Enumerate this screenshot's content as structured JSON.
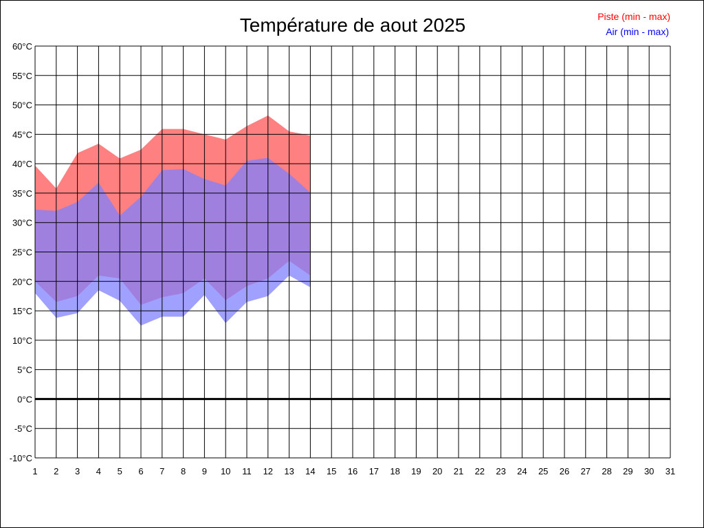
{
  "chart_data": {
    "type": "area",
    "title": "Température de aout 2025",
    "xlabel": "",
    "ylabel": "",
    "x": [
      1,
      2,
      3,
      4,
      5,
      6,
      7,
      8,
      9,
      10,
      11,
      12,
      13,
      14,
      15,
      16,
      17,
      18,
      19,
      20,
      21,
      22,
      23,
      24,
      25,
      26,
      27,
      28,
      29,
      30,
      31
    ],
    "x_tick_labels": [
      "1",
      "2",
      "3",
      "4",
      "5",
      "6",
      "7",
      "8",
      "9",
      "10",
      "11",
      "12",
      "13",
      "14",
      "15",
      "16",
      "17",
      "18",
      "19",
      "20",
      "21",
      "22",
      "23",
      "24",
      "25",
      "26",
      "27",
      "28",
      "29",
      "30",
      "31"
    ],
    "xlim": [
      1,
      31
    ],
    "ylim": [
      -10,
      60
    ],
    "y_ticks": [
      -10,
      -5,
      0,
      5,
      10,
      15,
      20,
      25,
      30,
      35,
      40,
      45,
      50,
      55,
      60
    ],
    "y_tick_labels": [
      "-10°C",
      "-5°C",
      "0°C",
      "5°C",
      "10°C",
      "15°C",
      "20°C",
      "25°C",
      "30°C",
      "35°C",
      "40°C",
      "45°C",
      "50°C",
      "55°C",
      "60°C"
    ],
    "grid": true,
    "zero_line": true,
    "legend_position": "top-right",
    "series": [
      {
        "name": "Piste (min - max)",
        "color": "#ff0000",
        "fill_color": "#ff8080",
        "min": [
          20.0,
          16.5,
          17.5,
          21.0,
          20.5,
          16.0,
          17.3,
          18.0,
          20.5,
          16.8,
          19.2,
          20.5,
          23.5,
          21.0
        ],
        "max": [
          39.7,
          35.8,
          41.8,
          43.4,
          40.9,
          42.4,
          45.9,
          45.9,
          45.0,
          44.1,
          46.4,
          48.2,
          45.5,
          44.8
        ]
      },
      {
        "name": "Air (min - max)",
        "color": "#0000ff",
        "fill_color": "#8080ff",
        "min": [
          18.0,
          13.8,
          14.6,
          18.5,
          16.7,
          12.5,
          14.0,
          14.0,
          17.7,
          12.9,
          16.5,
          17.5,
          21.0,
          19.0
        ],
        "max": [
          32.2,
          32.0,
          33.5,
          36.8,
          31.2,
          34.4,
          38.9,
          39.1,
          37.4,
          36.3,
          40.5,
          41.0,
          38.3,
          35.1
        ]
      }
    ]
  }
}
